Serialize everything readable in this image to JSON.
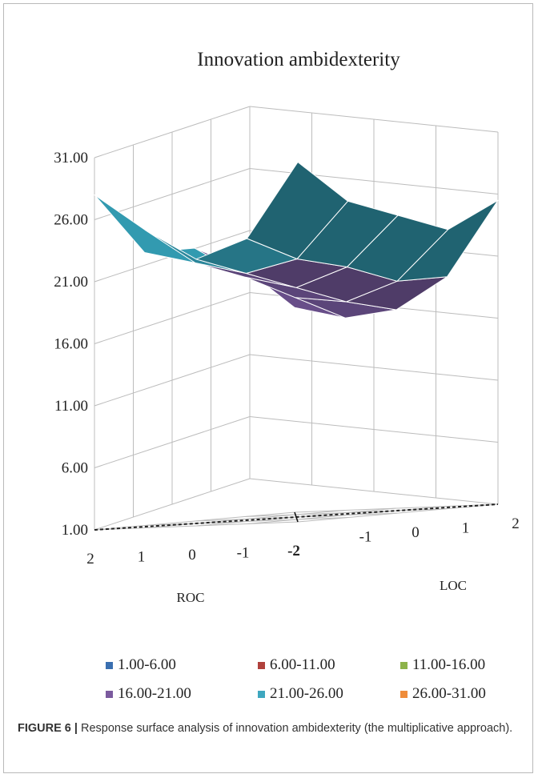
{
  "chart_data": {
    "type": "surface",
    "title": "Innovation ambidexterity",
    "xlabel": "ROC",
    "ylabel": "LOC",
    "zlim": [
      1.0,
      31.0
    ],
    "z_ticks": [
      "31.00",
      "26.00",
      "21.00",
      "16.00",
      "11.00",
      "6.00",
      "1.00"
    ],
    "x_ticks": [
      "2",
      "1",
      "0",
      "-1",
      "-2"
    ],
    "y_ticks": [
      "-2",
      "-1",
      "0",
      "1",
      "2"
    ],
    "x_values": [
      2,
      1,
      0,
      -1,
      -2
    ],
    "y_values": [
      -2,
      -1,
      0,
      1,
      2
    ],
    "z_values": [
      [
        28.0,
        23.0,
        23.0,
        21.0,
        17.5
      ],
      [
        25.0,
        22.0,
        20.5,
        18.5,
        16.5
      ],
      [
        22.5,
        21.0,
        19.5,
        18.0,
        17.0
      ],
      [
        24.0,
        22.0,
        21.0,
        19.5,
        19.5
      ],
      [
        30.0,
        26.5,
        25.0,
        23.5,
        25.5
      ]
    ],
    "legend": [
      {
        "label": "1.00-6.00",
        "color": "#3a6fb0"
      },
      {
        "label": "6.00-11.00",
        "color": "#b0413c"
      },
      {
        "label": "11.00-16.00",
        "color": "#8db34a"
      },
      {
        "label": "16.00-21.00",
        "color": "#7b5a9e"
      },
      {
        "label": "21.00-26.00",
        "color": "#3ea7bf"
      },
      {
        "label": "26.00-31.00",
        "color": "#ef8c3a"
      }
    ]
  },
  "caption": {
    "figure_label": "FIGURE 6 |",
    "text": " Response surface analysis of innovation ambidexterity (the multiplicative approach)."
  }
}
